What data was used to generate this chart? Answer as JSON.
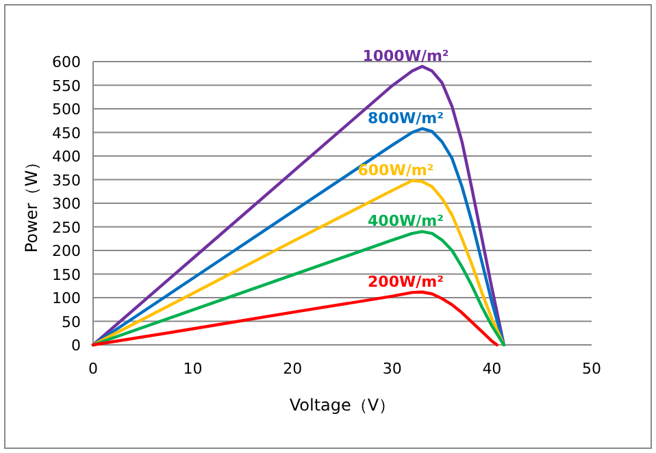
{
  "chart_data": {
    "type": "line",
    "xlabel": "Voltage（V）",
    "ylabel": "Power（W）",
    "xlim": [
      0,
      50
    ],
    "xticks": [
      0,
      10,
      20,
      30,
      40,
      50
    ],
    "ylim": [
      0,
      600
    ],
    "yticks": [
      0,
      50,
      100,
      150,
      200,
      250,
      300,
      350,
      400,
      450,
      500,
      550,
      600
    ],
    "grid": "y",
    "legend": false,
    "marker": "none",
    "line_style": "solid",
    "series": [
      {
        "name": "1000W/m²",
        "color": "#7030a0",
        "x": [
          0,
          10,
          20,
          30,
          32,
          33,
          34,
          35,
          36,
          37,
          38,
          39,
          40,
          41.2
        ],
        "values": [
          0,
          183,
          366,
          549,
          580,
          590,
          580,
          555,
          505,
          430,
          330,
          225,
          120,
          0
        ]
      },
      {
        "name": "800W/m²",
        "color": "#0070c0",
        "x": [
          0,
          10,
          20,
          30,
          32,
          33,
          34,
          35,
          36,
          37,
          38,
          39,
          40,
          41.2
        ],
        "values": [
          0,
          141,
          282,
          423,
          450,
          458,
          452,
          430,
          395,
          335,
          260,
          175,
          90,
          0
        ]
      },
      {
        "name": "600W/m²",
        "color": "#ffc000",
        "x": [
          0,
          10,
          20,
          30,
          32,
          33,
          34,
          35,
          36,
          37,
          38,
          39,
          40,
          41.2
        ],
        "values": [
          0,
          109,
          219,
          327,
          348,
          346,
          335,
          310,
          275,
          225,
          170,
          110,
          55,
          0
        ]
      },
      {
        "name": "400W/m²",
        "color": "#00b050",
        "x": [
          0,
          10,
          20,
          30,
          32,
          33,
          34,
          35,
          36,
          37,
          38,
          39,
          40,
          41.2
        ],
        "values": [
          0,
          74,
          148,
          222,
          236,
          240,
          236,
          222,
          200,
          165,
          125,
          80,
          40,
          0
        ]
      },
      {
        "name": "200W/m²",
        "color": "#ff0000",
        "x": [
          0,
          10,
          20,
          30,
          32,
          33,
          34,
          35,
          36,
          37,
          38,
          39,
          40,
          40.5
        ],
        "values": [
          0,
          34,
          69,
          103,
          111,
          112,
          108,
          98,
          85,
          68,
          48,
          28,
          8,
          0
        ]
      }
    ]
  }
}
